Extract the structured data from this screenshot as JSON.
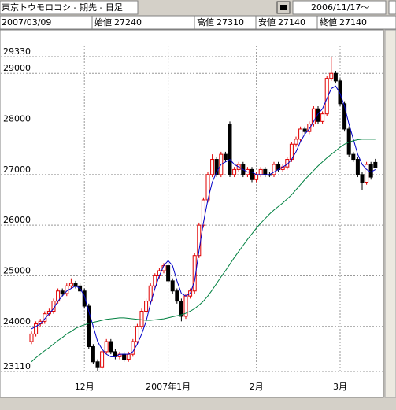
{
  "header": {
    "title": "東京トウモロコシ - 期先 - 日足",
    "start_date": "2006/11/17～"
  },
  "info": {
    "date": "2007/03/09",
    "fields": [
      {
        "label": "始値",
        "value": 27240
      },
      {
        "label": "高値",
        "value": 27310
      },
      {
        "label": "安値",
        "value": 27140
      },
      {
        "label": "終値",
        "value": 27140
      }
    ]
  },
  "chart_data": {
    "type": "candlestick",
    "open": [
      23700,
      23850,
      24050,
      24100,
      24250,
      24300,
      24500,
      24700,
      24650,
      24800,
      24850,
      24800,
      24700,
      24400,
      23600,
      23300,
      23200,
      23500,
      23700,
      23500,
      23400,
      23450,
      23350,
      23450,
      23700,
      24000,
      24300,
      24500,
      24800,
      25000,
      25100,
      25200,
      24900,
      24700,
      24500,
      24200,
      24600,
      24700,
      25400,
      26000,
      26500,
      27000,
      27300,
      27000,
      27400,
      28000,
      27000,
      27100,
      27200,
      27000,
      27100,
      26900,
      27000,
      27100,
      27000,
      27000,
      27200,
      27100,
      27150,
      27300,
      27600,
      27700,
      27900,
      27850,
      28000,
      28300,
      28050,
      28200,
      28900,
      29000,
      28850,
      28400,
      27900,
      27400,
      27300,
      27000,
      26850,
      27200,
      27240
    ],
    "high": [
      23900,
      24100,
      24150,
      24300,
      24350,
      24550,
      24750,
      24750,
      24850,
      24950,
      24900,
      24850,
      24750,
      24450,
      23650,
      23350,
      23550,
      23750,
      23750,
      23550,
      23500,
      23500,
      23500,
      23750,
      24050,
      24350,
      24550,
      24850,
      25050,
      25150,
      25250,
      25250,
      24950,
      24750,
      24550,
      24650,
      24750,
      25450,
      26050,
      26550,
      27050,
      27400,
      27350,
      27450,
      27450,
      28050,
      27150,
      27250,
      27250,
      27150,
      27150,
      27050,
      27150,
      27150,
      27050,
      27250,
      27250,
      27200,
      27350,
      27650,
      27750,
      27950,
      27950,
      28050,
      28350,
      28350,
      28250,
      28950,
      29330,
      29050,
      28900,
      28450,
      27950,
      27450,
      27350,
      27050,
      27250,
      27250,
      27310
    ],
    "low": [
      23650,
      23800,
      24000,
      24050,
      24200,
      24250,
      24450,
      24600,
      24600,
      24750,
      24750,
      24650,
      24350,
      23550,
      23250,
      23110,
      23150,
      23450,
      23450,
      23350,
      23350,
      23300,
      23300,
      23400,
      23650,
      23950,
      24250,
      24450,
      24750,
      24950,
      25050,
      24850,
      24650,
      24450,
      24100,
      24150,
      24550,
      24650,
      25350,
      25950,
      26450,
      26950,
      26950,
      26950,
      27250,
      26950,
      26950,
      27050,
      26950,
      26950,
      26850,
      26850,
      26950,
      26950,
      26950,
      26950,
      27050,
      27050,
      27100,
      27250,
      27550,
      27650,
      27800,
      27800,
      27950,
      28000,
      28000,
      28150,
      28850,
      28800,
      28350,
      27850,
      27350,
      27250,
      26950,
      26700,
      26800,
      26900,
      27140
    ],
    "close": [
      23850,
      24050,
      24100,
      24250,
      24300,
      24500,
      24700,
      24650,
      24800,
      24850,
      24800,
      24700,
      24400,
      23600,
      23300,
      23200,
      23500,
      23700,
      23500,
      23400,
      23450,
      23350,
      23450,
      23700,
      24000,
      24300,
      24500,
      24800,
      25000,
      25100,
      25200,
      24900,
      24700,
      24500,
      24200,
      24600,
      24700,
      25400,
      26000,
      26500,
      27000,
      27300,
      27000,
      27400,
      27300,
      27000,
      27100,
      27200,
      27000,
      27100,
      26900,
      27000,
      27100,
      27000,
      27000,
      27200,
      27100,
      27150,
      27300,
      27600,
      27700,
      27900,
      27850,
      28000,
      28300,
      28050,
      28200,
      28900,
      29000,
      28850,
      28400,
      27900,
      27400,
      27300,
      27000,
      26850,
      27200,
      26950,
      27140
    ],
    "up_color": "#e00000",
    "down_color": "#000000",
    "series": [
      {
        "color": "#0000c8",
        "values": [
          23950,
          24000,
          24050,
          24150,
          24250,
          24350,
          24500,
          24600,
          24700,
          24750,
          24800,
          24750,
          24600,
          24300,
          24000,
          23700,
          23550,
          23450,
          23400,
          23400,
          23450,
          23450,
          23450,
          23500,
          23650,
          23850,
          24100,
          24450,
          24750,
          25000,
          25200,
          25300,
          25200,
          24900,
          24650,
          24600,
          24650,
          24900,
          25500,
          26050,
          26500,
          26850,
          27050,
          27200,
          27250,
          27300,
          27200,
          27150,
          27100,
          27050,
          27050,
          27000,
          27000,
          27000,
          27000,
          27050,
          27100,
          27150,
          27200,
          27300,
          27450,
          27650,
          27800,
          27900,
          28050,
          28200,
          28300,
          28500,
          28700,
          28750,
          28600,
          28350,
          28000,
          27700,
          27400,
          27200,
          27100,
          27050,
          27100
        ]
      },
      {
        "color": "#008040",
        "values": [
          23300,
          23380,
          23450,
          23520,
          23580,
          23650,
          23720,
          23780,
          23850,
          23900,
          23960,
          24000,
          24030,
          24060,
          24080,
          24100,
          24120,
          24140,
          24150,
          24160,
          24170,
          24170,
          24160,
          24150,
          24140,
          24130,
          24120,
          24120,
          24130,
          24140,
          24150,
          24170,
          24190,
          24210,
          24230,
          24260,
          24300,
          24350,
          24420,
          24500,
          24600,
          24720,
          24850,
          24980,
          25100,
          25230,
          25360,
          25480,
          25600,
          25720,
          25830,
          25940,
          26040,
          26130,
          26220,
          26300,
          26370,
          26440,
          26520,
          26600,
          26700,
          26800,
          26900,
          26990,
          27080,
          27170,
          27250,
          27330,
          27400,
          27470,
          27540,
          27600,
          27640,
          27670,
          27690,
          27700,
          27700,
          27700,
          27700
        ]
      }
    ],
    "ylim": [
      23110,
      29330
    ],
    "yticks": [
      23110,
      24000,
      25000,
      26000,
      27000,
      28000,
      29000,
      29330
    ],
    "xticks": [
      {
        "value": 12,
        "label": "12月"
      },
      {
        "value": 31,
        "label": "2007年1月"
      },
      {
        "value": 51,
        "label": "2月"
      },
      {
        "value": 70,
        "label": "3月"
      }
    ],
    "grid": true
  }
}
